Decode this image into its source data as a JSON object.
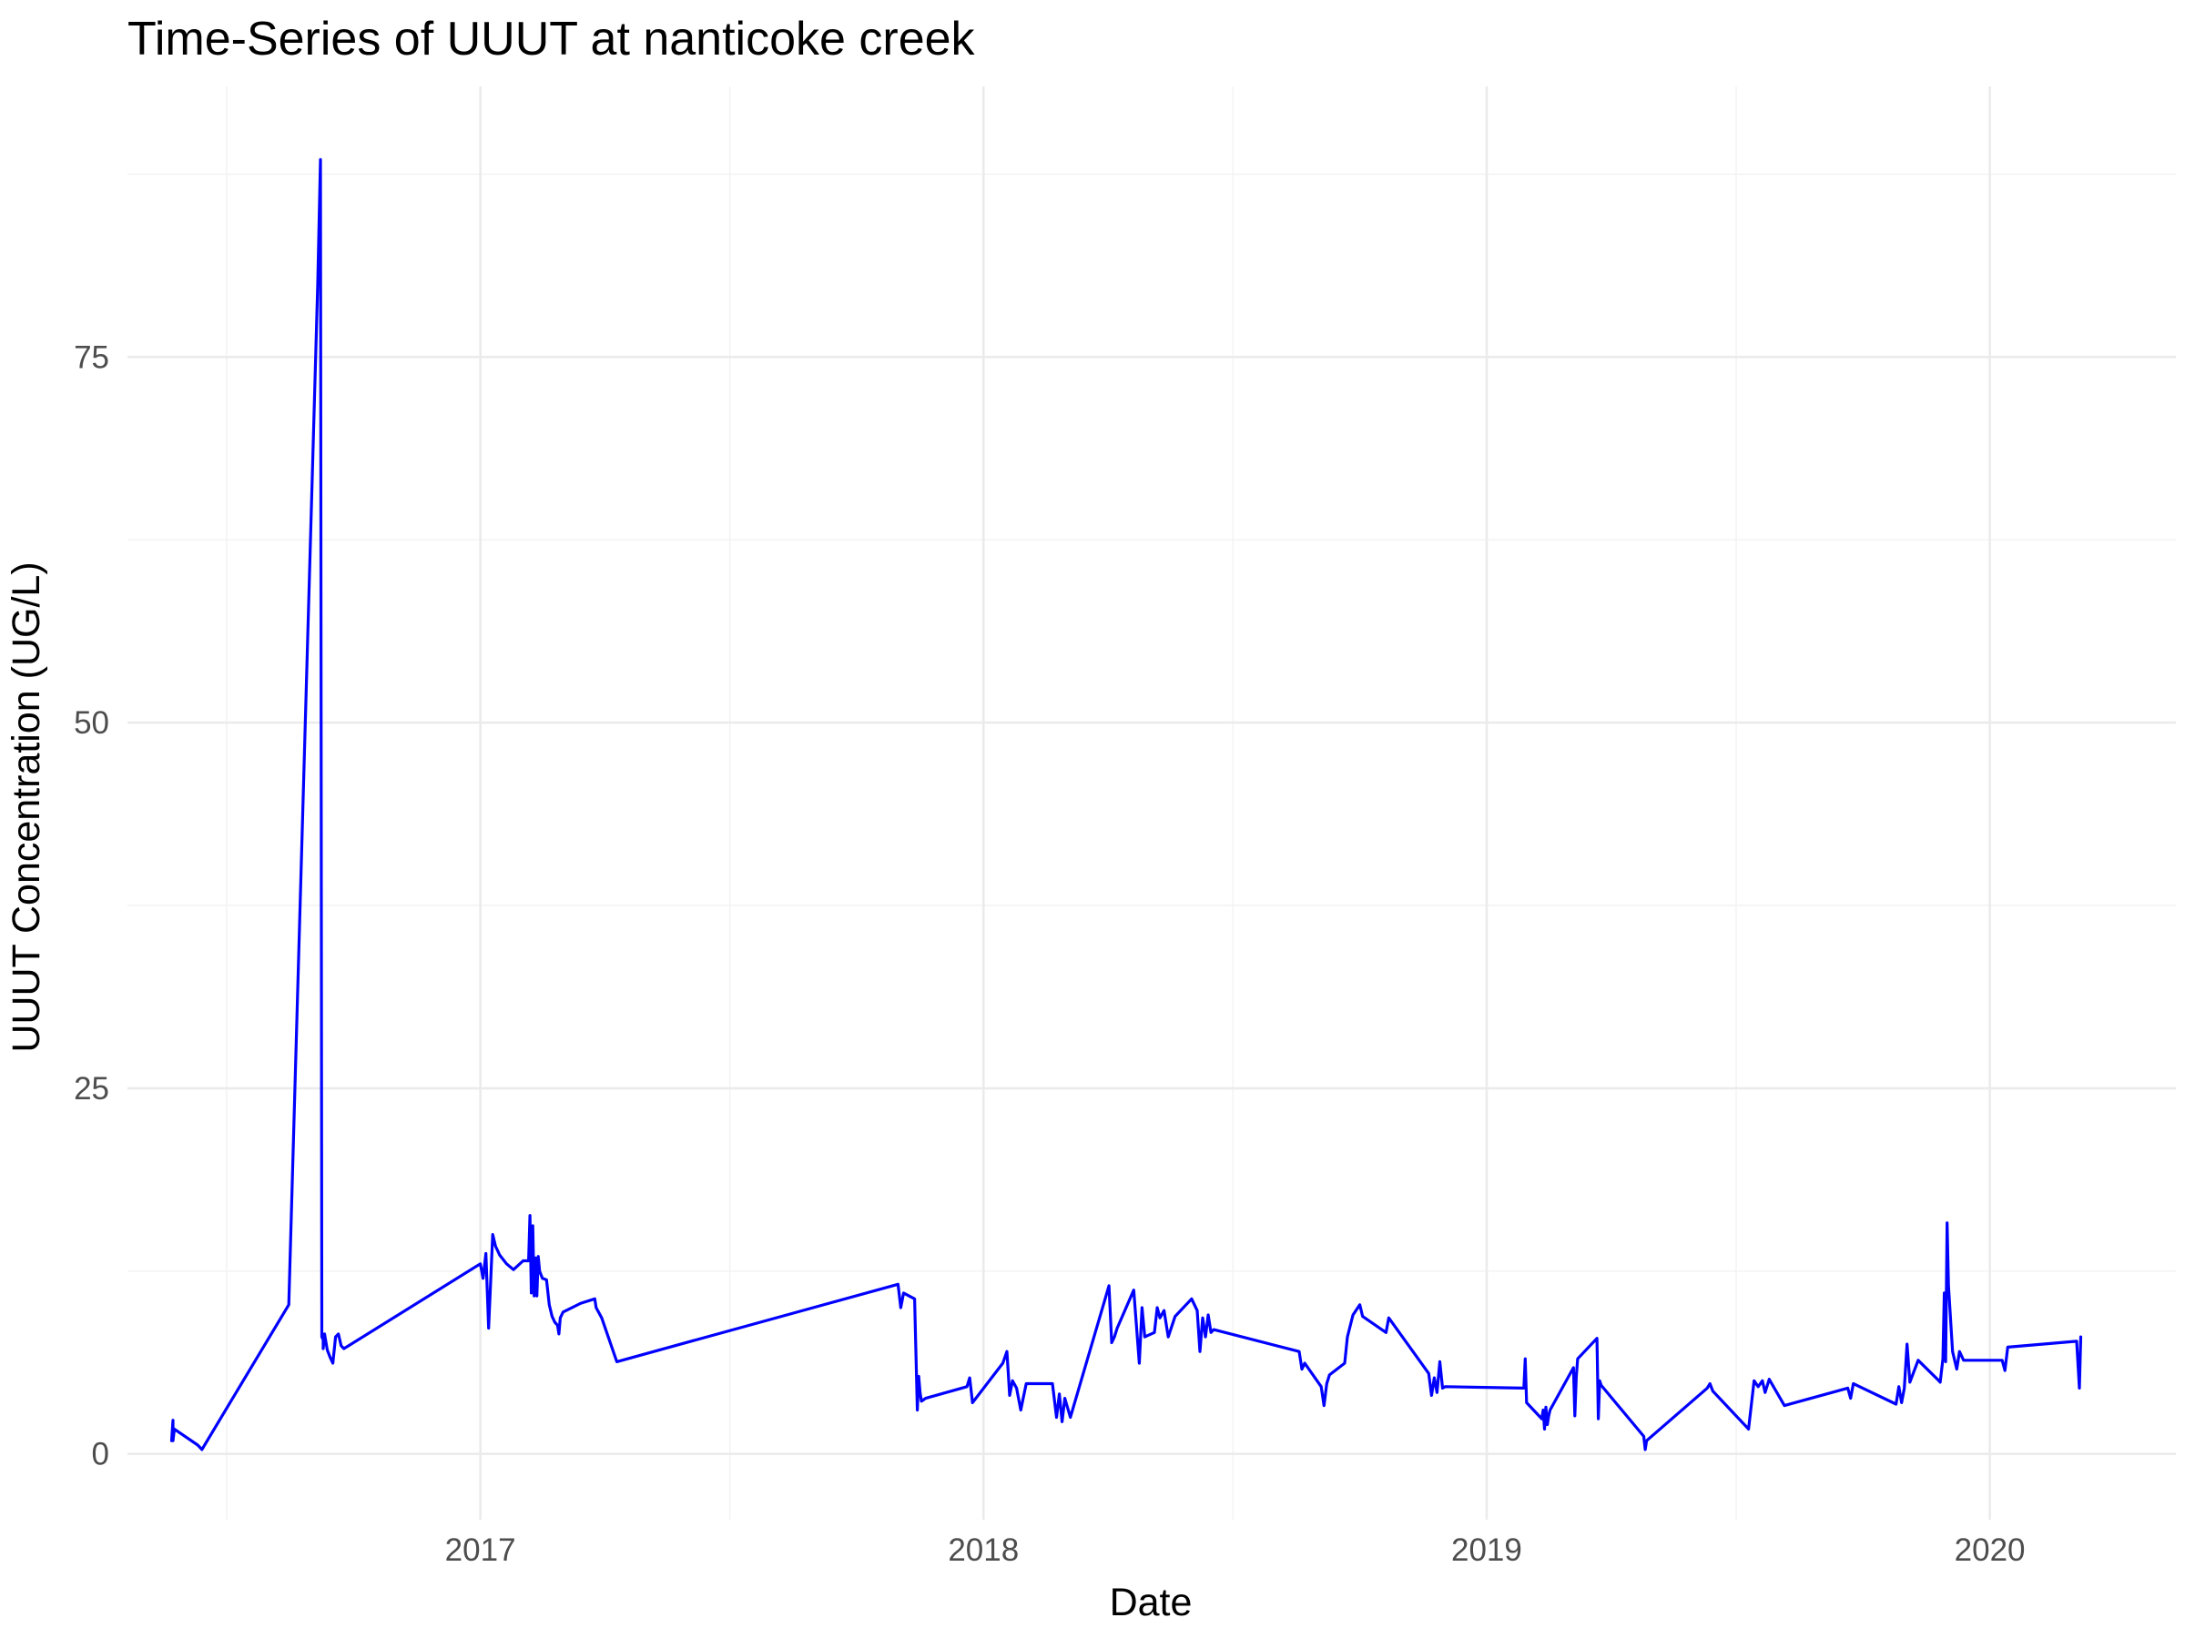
{
  "chart_data": {
    "type": "line",
    "title": "Time-Series of UUUT at nanticoke creek",
    "xlabel": "Date",
    "ylabel": "UUUT Concentration (UG/L)",
    "x_ticks": [
      "2017",
      "2018",
      "2019",
      "2020"
    ],
    "y_ticks": [
      0,
      25,
      50,
      75
    ],
    "xlim": [
      "2016-04-20",
      "2020-05-15"
    ],
    "ylim": [
      -4.5,
      93.5
    ],
    "grid": true,
    "legend": "none",
    "colors": {
      "series": "#0000ff",
      "grid": "#ebebeb"
    },
    "series": [
      {
        "x": [
          "2016-05-22",
          "2016-05-23",
          "2016-05-23",
          "2016-05-24",
          "2016-06-10",
          "2016-06-13",
          "2016-08-15",
          "2016-09-05",
          "2016-09-07",
          "2016-09-08",
          "2016-09-09",
          "2016-09-09",
          "2016-09-10",
          "2016-09-12",
          "2016-09-14",
          "2016-09-16",
          "2016-09-18",
          "2016-09-20",
          "2016-09-22",
          "2016-09-24",
          "2017-01-01",
          "2017-01-03",
          "2017-01-05",
          "2017-01-07",
          "2017-01-10",
          "2017-01-12",
          "2017-01-15",
          "2017-01-20",
          "2017-01-25",
          "2017-02-01",
          "2017-02-05",
          "2017-02-06",
          "2017-02-07",
          "2017-02-08",
          "2017-02-09",
          "2017-02-10",
          "2017-02-11",
          "2017-02-12",
          "2017-02-13",
          "2017-02-15",
          "2017-02-18",
          "2017-02-20",
          "2017-02-22",
          "2017-02-24",
          "2017-02-26",
          "2017-02-27",
          "2017-02-28",
          "2017-03-02",
          "2017-03-15",
          "2017-03-25",
          "2017-03-26",
          "2017-03-30",
          "2017-04-10",
          "2017-10-31",
          "2017-11-02",
          "2017-11-04",
          "2017-11-12",
          "2017-11-14",
          "2017-11-15",
          "2017-11-16",
          "2017-11-17",
          "2017-11-20",
          "2017-12-20",
          "2017-12-22",
          "2017-12-24",
          "2018-01-15",
          "2018-01-18",
          "2018-01-20",
          "2018-01-22",
          "2018-01-25",
          "2018-01-28",
          "2018-02-01",
          "2018-02-20",
          "2018-02-23",
          "2018-02-25",
          "2018-02-27",
          "2018-03-01",
          "2018-03-05",
          "2018-04-02",
          "2018-04-04",
          "2018-04-06",
          "2018-04-08",
          "2018-04-20",
          "2018-04-24",
          "2018-04-26",
          "2018-04-28",
          "2018-05-05",
          "2018-05-07",
          "2018-05-09",
          "2018-05-12",
          "2018-05-15",
          "2018-05-20",
          "2018-06-01",
          "2018-06-05",
          "2018-06-07",
          "2018-06-09",
          "2018-06-11",
          "2018-06-13",
          "2018-06-15",
          "2018-06-17",
          "2018-08-18",
          "2018-08-20",
          "2018-08-22",
          "2018-09-03",
          "2018-09-05",
          "2018-09-07",
          "2018-09-09",
          "2018-09-20",
          "2018-09-22",
          "2018-09-26",
          "2018-10-01",
          "2018-10-03",
          "2018-10-20",
          "2018-10-22",
          "2018-11-20",
          "2018-11-22",
          "2018-11-24",
          "2018-11-26",
          "2018-11-28",
          "2018-11-30",
          "2018-12-02",
          "2019-01-28",
          "2019-01-29",
          "2019-01-30",
          "2019-02-10",
          "2019-02-11",
          "2019-02-12",
          "2019-02-13",
          "2019-02-14",
          "2019-02-15",
          "2019-02-16",
          "2019-03-05",
          "2019-03-06",
          "2019-03-07",
          "2019-03-08",
          "2019-03-22",
          "2019-03-23",
          "2019-03-24",
          "2019-03-25",
          "2019-04-25",
          "2019-04-26",
          "2019-04-27",
          "2019-06-10",
          "2019-06-12",
          "2019-06-14",
          "2019-07-10",
          "2019-07-14",
          "2019-07-17",
          "2019-07-20",
          "2019-07-22",
          "2019-07-25",
          "2019-08-05",
          "2019-09-20",
          "2019-09-22",
          "2019-09-24",
          "2019-10-25",
          "2019-10-27",
          "2019-10-29",
          "2019-10-31",
          "2019-11-02",
          "2019-11-04",
          "2019-11-10",
          "2019-11-24",
          "2019-11-26",
          "2019-11-28",
          "2019-11-29",
          "2019-11-30",
          "2019-12-01",
          "2019-12-02",
          "2019-12-05",
          "2019-12-08",
          "2019-12-10",
          "2019-12-13",
          "2020-01-10",
          "2020-01-12",
          "2020-01-14",
          "2020-03-04",
          "2020-03-06",
          "2020-03-07"
        ],
        "values": [
          0.9,
          2.3,
          0.9,
          1.7,
          0.6,
          0.3,
          10.2,
          80.0,
          88.5,
          8.0,
          7.8,
          7.2,
          8.2,
          7.1,
          6.6,
          6.2,
          8.0,
          8.2,
          7.4,
          7.2,
          13.0,
          12.0,
          13.7,
          8.6,
          15.0,
          14.2,
          13.6,
          13.0,
          12.6,
          13.2,
          13.2,
          16.3,
          11.0,
          15.6,
          10.8,
          13.4,
          10.8,
          13.5,
          12.5,
          12.0,
          11.9,
          10.2,
          9.4,
          9.0,
          8.8,
          8.2,
          9.3,
          9.7,
          10.3,
          10.6,
          10.0,
          9.3,
          6.3,
          11.6,
          10.0,
          11.0,
          10.6,
          3.0,
          5.3,
          4.2,
          3.6,
          3.8,
          4.6,
          5.2,
          3.5,
          6.2,
          7.0,
          4.0,
          5.0,
          4.5,
          3.0,
          4.8,
          4.8,
          2.5,
          4.1,
          2.2,
          3.8,
          2.5,
          11.5,
          7.6,
          8.0,
          8.6,
          11.2,
          6.2,
          10.0,
          8.0,
          8.3,
          10.0,
          9.3,
          9.8,
          8.0,
          9.4,
          10.6,
          9.8,
          7.0,
          9.3,
          8.0,
          9.5,
          8.3,
          8.5,
          7.0,
          5.8,
          6.2,
          4.6,
          3.3,
          4.8,
          5.4,
          6.2,
          8.0,
          9.5,
          10.2,
          9.4,
          8.3,
          9.3,
          5.5,
          4.0,
          5.2,
          4.2,
          6.3,
          4.5,
          4.6,
          4.5,
          6.5,
          3.5,
          2.4,
          3.0,
          1.7,
          3.2,
          2.0,
          2.6,
          3.0,
          5.9,
          2.6,
          5.3,
          6.5,
          7.9,
          2.4,
          5.0,
          4.7,
          1.2,
          0.3,
          0.9,
          4.5,
          4.8,
          4.3,
          1.7,
          5.0,
          4.6,
          5.0,
          4.2,
          5.1,
          3.3,
          4.5,
          3.8,
          4.8,
          3.4,
          4.6,
          3.5,
          4.5,
          7.5,
          4.9,
          6.4,
          5.1,
          4.9,
          6.5,
          11.0,
          6.3,
          15.8,
          11.5,
          7.0,
          5.8,
          7.0,
          6.4,
          6.4,
          5.7,
          7.3,
          7.7,
          4.5,
          8.0
        ]
      }
    ]
  }
}
